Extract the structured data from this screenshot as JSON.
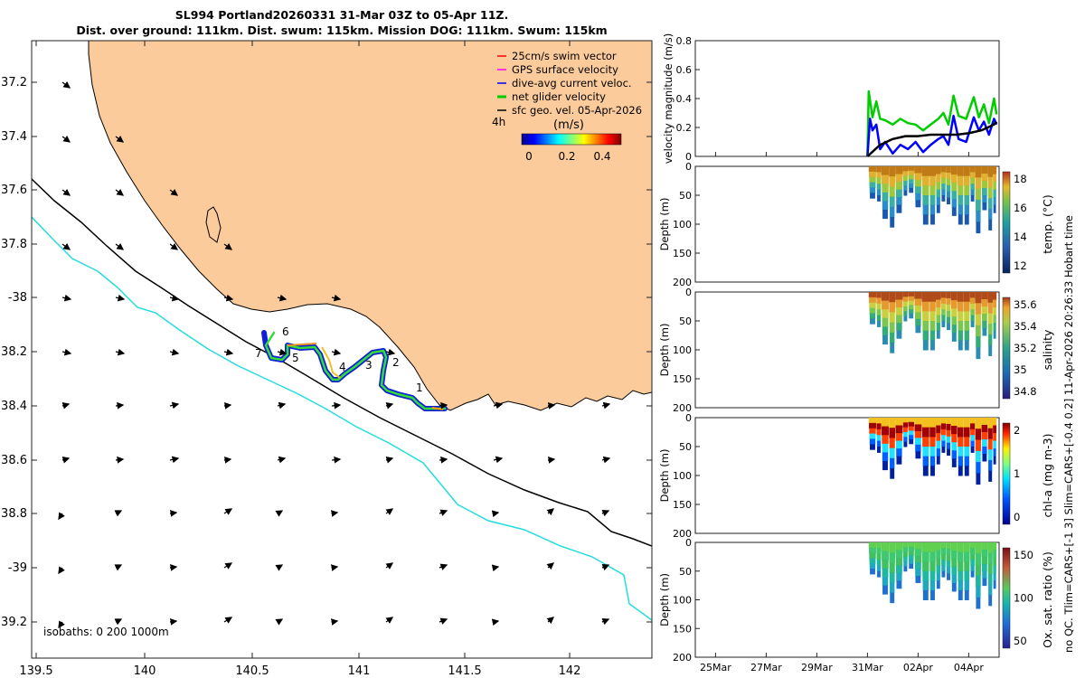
{
  "title": {
    "line1": "SL994 Portland20260331 31-Mar 03Z to 05-Apr 11Z.",
    "line2": "Dist. over ground: 111km. Dist. swum: 115km. Mission DOG: 111km. Swum: 115km"
  },
  "map": {
    "lon_ticks": [
      "139.5",
      "140",
      "140.5",
      "141",
      "141.5",
      "142"
    ],
    "lat_ticks": [
      "37.2",
      "37.4",
      "37.6",
      "37.8",
      "-38",
      "38.2",
      "38.4",
      "38.6",
      "38.8",
      "-39",
      "39.2"
    ],
    "legend": {
      "items": [
        {
          "label": "25cm/s swim vector",
          "color": "#ff0000"
        },
        {
          "label": "GPS surface velocity",
          "color": "#ff00ff"
        },
        {
          "label": "dive-avg current veloc.",
          "color": "#0000ff"
        },
        {
          "label": "net glider velocity",
          "color": "#00cc00"
        },
        {
          "label": "sfc geo. vel. 05-Apr-2026",
          "color": "#000000"
        }
      ],
      "interval_label": "4h",
      "colorbar_label": "(m/s)",
      "colorbar_ticks": [
        "0",
        "0.2",
        "0.4"
      ]
    },
    "waypoints": [
      "1",
      "2",
      "3",
      "4",
      "5",
      "6",
      "7"
    ],
    "isobaths_label": "isobaths: 0   200  1000m",
    "colors": {
      "land": "#fbcb9b",
      "isobath_200": "#000000",
      "isobath_1000": "#22dddd"
    }
  },
  "chart_data": [
    {
      "type": "line",
      "title": "",
      "ylabel": "velocity magnitude (m/s)",
      "ylim": [
        0,
        0.8
      ],
      "yticks": [
        "0",
        "0.2",
        "0.4",
        "0.6",
        "0.8"
      ],
      "series": [
        {
          "name": "net glider velocity",
          "color": "#00cc00",
          "x": [
            31.0,
            31.05,
            31.2,
            31.35,
            31.5,
            31.7,
            32.0,
            32.3,
            32.6,
            32.9,
            33.2,
            33.5,
            33.8,
            34.0,
            34.2,
            34.4,
            34.6,
            34.9,
            35.2,
            35.4,
            35.6,
            35.8,
            36.0,
            36.1
          ],
          "values": [
            0.0,
            0.45,
            0.27,
            0.38,
            0.26,
            0.25,
            0.22,
            0.26,
            0.23,
            0.22,
            0.18,
            0.22,
            0.26,
            0.3,
            0.22,
            0.42,
            0.28,
            0.26,
            0.41,
            0.27,
            0.36,
            0.23,
            0.4,
            0.29
          ]
        },
        {
          "name": "dive-avg current veloc.",
          "color": "#0000ff",
          "x": [
            31.0,
            31.1,
            31.2,
            31.35,
            31.5,
            31.7,
            32.0,
            32.3,
            32.6,
            32.9,
            33.2,
            33.5,
            33.8,
            34.0,
            34.2,
            34.4,
            34.6,
            34.9,
            35.2,
            35.4,
            35.6,
            35.8,
            36.0,
            36.1
          ],
          "values": [
            0.0,
            0.26,
            0.18,
            0.22,
            0.05,
            0.1,
            0.02,
            0.08,
            0.05,
            0.1,
            0.03,
            0.08,
            0.12,
            0.14,
            0.08,
            0.28,
            0.12,
            0.1,
            0.27,
            0.18,
            0.24,
            0.15,
            0.26,
            0.22
          ]
        },
        {
          "name": "sfc geo. vel.",
          "color": "#000000",
          "x": [
            31.0,
            31.5,
            32.0,
            32.5,
            33.0,
            33.5,
            34.0,
            34.5,
            35.0,
            35.5,
            36.0,
            36.1
          ],
          "values": [
            0.0,
            0.08,
            0.12,
            0.14,
            0.14,
            0.15,
            0.15,
            0.15,
            0.16,
            0.18,
            0.22,
            0.24
          ]
        }
      ]
    },
    {
      "type": "heatmap",
      "ylabel": "Depth (m)",
      "ylim": [
        0,
        200
      ],
      "yticks": [
        "0",
        "50",
        "100",
        "150",
        "200"
      ],
      "colorbar_label": "temp. (°C)",
      "colorbar_ticks": [
        "12",
        "14",
        "16",
        "18"
      ]
    },
    {
      "type": "heatmap",
      "ylabel": "Depth (m)",
      "ylim": [
        0,
        200
      ],
      "yticks": [
        "0",
        "50",
        "100",
        "150",
        "200"
      ],
      "colorbar_label": "salinity",
      "colorbar_ticks": [
        "34.8",
        "35",
        "35.2",
        "35.4",
        "35.6"
      ]
    },
    {
      "type": "heatmap",
      "ylabel": "Depth (m)",
      "ylim": [
        0,
        200
      ],
      "yticks": [
        "0",
        "50",
        "100",
        "150",
        "200"
      ],
      "colorbar_label": "chl-a (mg m-3)",
      "colorbar_ticks": [
        "0",
        "1",
        "2"
      ]
    },
    {
      "type": "heatmap",
      "ylabel": "Depth (m)",
      "ylim": [
        0,
        200
      ],
      "yticks": [
        "0",
        "50",
        "100",
        "150",
        "200"
      ],
      "colorbar_label": "Ox. sat. ratio (%)",
      "colorbar_ticks": [
        "50",
        "100",
        "150"
      ],
      "xticks": [
        "25Mar",
        "27Mar",
        "29Mar",
        "31Mar",
        "02Apr",
        "04Apr"
      ]
    }
  ],
  "side_note": "no QC. Tlim=CARS+[-1 3] Slim=CARS+[-0.4 0.2] 11-Apr-2026 20:26:33 Hobart time"
}
